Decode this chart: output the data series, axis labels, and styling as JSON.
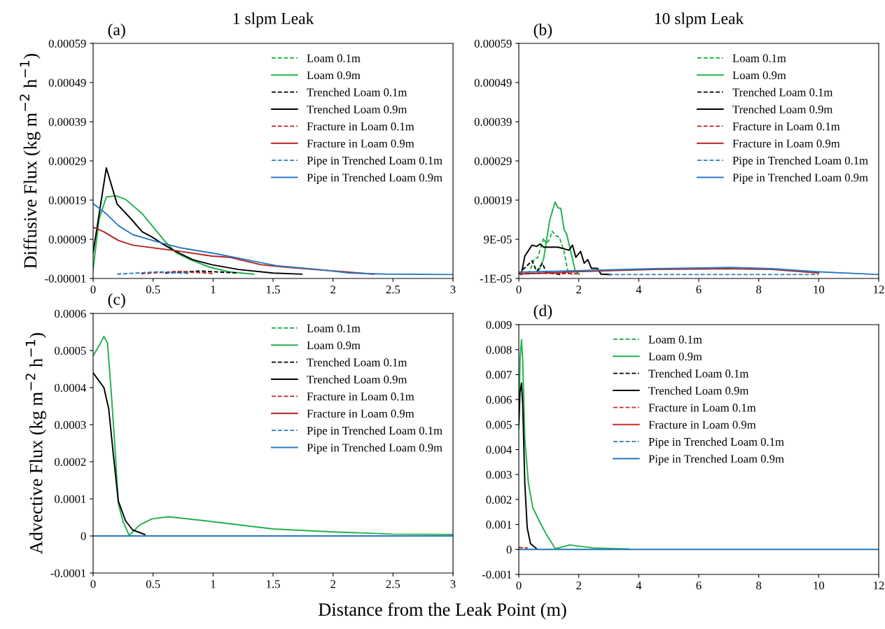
{
  "chart_data": [
    {
      "type": "line",
      "title": "1 slpm Leak",
      "subtitle": "(a)",
      "ylabel": "Diffusive Flux (kg m$^{−2}$ h$^{−1}$)",
      "xlim": [
        0,
        3
      ],
      "xticks": [
        0,
        0.5,
        1,
        1.5,
        2,
        2.5,
        3
      ],
      "ylim": [
        -1e-05,
        0.00059
      ],
      "yticks": [
        {
          "value": -1e-05,
          "label": "-0.00001"
        },
        {
          "value": 9e-05,
          "label": "0.00009"
        },
        {
          "value": 0.00019,
          "label": "0.00019"
        },
        {
          "value": 0.00029,
          "label": "0.00029"
        },
        {
          "value": 0.00039,
          "label": "0.00039"
        },
        {
          "value": 0.00049,
          "label": "0.00049"
        },
        {
          "value": 0.00059,
          "label": "0.00059"
        }
      ],
      "legend": "top right",
      "grid": false,
      "series": [
        {
          "name": "Loam 0.1m",
          "color": "#22b14c",
          "line_style": "dashed"
        },
        {
          "name": "Loam 0.9m",
          "color": "#22b14c",
          "line_style": "solid",
          "x": [
            0,
            0.05,
            0.11,
            0.19,
            0.27,
            0.41,
            0.51,
            0.61,
            0.69,
            0.81,
            0.97,
            1.13,
            1.34
          ],
          "values": [
            1.3e-05,
            0.000142,
            0.000198,
            0.000201,
            0.000192,
            0.000155,
            0.000118,
            8.1e-05,
            5.6e-05,
            3.8e-05,
            1.9e-05,
            7e-06,
            1e-06
          ]
        },
        {
          "name": "Trenched Loam 0.1m",
          "color": "#000000",
          "line_style": "dashed",
          "x": [
            0.6,
            0.9,
            1.2
          ],
          "values": [
            4e-06,
            9e-06,
            4e-06
          ]
        },
        {
          "name": "Trenched Loam 0.9m",
          "color": "#000000",
          "line_style": "solid",
          "x": [
            0,
            0.11,
            0.2,
            0.31,
            0.41,
            0.49,
            0.57,
            0.67,
            0.83,
            0.99,
            1.21,
            1.5,
            1.74
          ],
          "values": [
            5.6e-05,
            0.000272,
            0.00018,
            0.000144,
            0.000109,
            9.6e-05,
            8e-05,
            6.2e-05,
            3.8e-05,
            2.5e-05,
            1.3e-05,
            4e-06,
            1e-06
          ]
        },
        {
          "name": "Fracture in Loam 0.1m",
          "color": "#b22222",
          "line_style": "dashed",
          "x": [
            0.4,
            0.7,
            1.0
          ],
          "values": [
            2e-06,
            8e-06,
            3e-06
          ]
        },
        {
          "name": "Fracture in Loam 0.9m",
          "color": "#b22222",
          "line_style": "solid",
          "x": [
            0,
            0.09,
            0.21,
            0.33,
            0.53,
            0.73,
            0.99,
            1.14,
            1.4,
            1.6,
            1.84,
            2.1,
            2.34
          ],
          "values": [
            0.000121,
            0.000109,
            8.7e-05,
            7.5e-05,
            6.7e-05,
            5.9e-05,
            4.7e-05,
            4.4e-05,
            2.5e-05,
            1.9e-05,
            1.3e-05,
            7e-06,
            1e-06
          ]
        },
        {
          "name": "Pipe in Trenched Loam 0.1m",
          "color": "#2a7abf",
          "line_style": "dashed",
          "x": [
            0.2,
            0.55,
            0.8
          ],
          "values": [
            1e-06,
            7e-06,
            3e-06
          ]
        },
        {
          "name": "Pipe in Trenched Loam 0.9m",
          "color": "#2a7abf",
          "line_style": "solid",
          "x": [
            0,
            0.11,
            0.21,
            0.33,
            0.53,
            0.73,
            1.03,
            1.34,
            1.54,
            1.88,
            2.14,
            2.44,
            3
          ],
          "values": [
            0.000181,
            0.000155,
            0.000125,
            0.000102,
            8.4e-05,
            6.8e-05,
            5.3e-05,
            3.4e-05,
            2.2e-05,
            1.3e-05,
            4e-06,
            1e-06,
            0
          ]
        }
      ]
    },
    {
      "type": "line",
      "title": "10 slpm Leak",
      "subtitle": "(b)",
      "xlim": [
        0,
        12
      ],
      "xticks": [
        0,
        2,
        4,
        6,
        8,
        10,
        12
      ],
      "ylim": [
        -1e-05,
        0.00059
      ],
      "yticks": [
        {
          "value": -1e-05,
          "label": "-1E-05"
        },
        {
          "value": 9e-05,
          "label": "9E-05"
        },
        {
          "value": 0.00019,
          "label": "0.00019"
        },
        {
          "value": 0.00029,
          "label": "0.00029"
        },
        {
          "value": 0.00039,
          "label": "0.00039"
        },
        {
          "value": 0.00049,
          "label": "0.00049"
        },
        {
          "value": 0.00059,
          "label": "0.00059"
        }
      ],
      "legend": "top right",
      "grid": false,
      "series": [
        {
          "name": "Loam 0.1m",
          "color": "#22b14c",
          "line_style": "dashed",
          "x": [
            0.32,
            0.52,
            0.63,
            0.83,
            0.91,
            1.03,
            1.11,
            1.23,
            1.35,
            1.51,
            1.63,
            1.79
          ],
          "values": [
            0,
            4.1e-05,
            4.3e-05,
            9.3e-05,
            7.8e-05,
            9e-05,
            0.000111,
            9.9e-05,
            9.6e-05,
            5.9e-05,
            1e-05,
            0
          ]
        },
        {
          "name": "Loam 0.9m",
          "color": "#22b14c",
          "line_style": "solid",
          "x": [
            0.67,
            0.83,
            1.03,
            1.21,
            1.31,
            1.4,
            1.51,
            1.6,
            1.75,
            1.88,
            2.02
          ],
          "values": [
            1e-05,
            4.1e-05,
            0.000139,
            0.000185,
            0.00017,
            0.000169,
            0.000115,
            0.000102,
            5.3e-05,
            1e-05,
            0
          ]
        },
        {
          "name": "Trenched Loam 0.1m",
          "color": "#000000",
          "line_style": "dashed",
          "x": [
            0.12,
            0.28,
            0.44,
            0.6,
            0.79,
            0.91,
            1.4
          ],
          "values": [
            1.2e-05,
            2.3e-05,
            3.5e-05,
            8e-06,
            2.9e-05,
            5e-06,
            0
          ]
        },
        {
          "name": "Trenched Loam 0.9m",
          "color": "#000000",
          "line_style": "solid",
          "x": [
            0.08,
            0.2,
            0.44,
            0.6,
            0.71,
            0.83,
            1.31,
            1.67,
            1.79,
            1.9,
            2.06,
            2.18,
            2.3,
            2.42,
            2.62,
            2.74,
            3.06
          ],
          "values": [
            0,
            4.7e-05,
            7.5e-05,
            7.2e-05,
            7.8e-05,
            7e-05,
            7e-05,
            6.2e-05,
            7.5e-05,
            4.4e-05,
            5.9e-05,
            2.9e-05,
            3.8e-05,
            1.6e-05,
            1.6e-05,
            1e-06,
            0
          ]
        },
        {
          "name": "Fracture in Loam 0.1m",
          "color": "#b22222",
          "line_style": "dashed",
          "x": [
            0,
            1,
            2
          ],
          "values": [
            4e-06,
            3e-06,
            2e-06
          ]
        },
        {
          "name": "Fracture in Loam 0.9m",
          "color": "#b22222",
          "line_style": "solid",
          "x": [
            0,
            2.1,
            4.5,
            6.9,
            8.45,
            10
          ],
          "values": [
            1e-06,
            8e-06,
            1.3e-05,
            1.5e-05,
            1.3e-05,
            4e-06
          ]
        },
        {
          "name": "Pipe in Trenched Loam 0.1m",
          "color": "#2a7abf",
          "line_style": "dashed",
          "x": [
            3,
            4,
            6,
            8,
            10
          ],
          "values": [
            0,
            0,
            0,
            0,
            0
          ]
        },
        {
          "name": "Pipe in Trenched Loam 0.9m",
          "color": "#2a7abf",
          "line_style": "solid",
          "x": [
            0,
            2.1,
            4.5,
            7.1,
            8.45,
            10,
            12
          ],
          "values": [
            6e-06,
            1e-05,
            1.5e-05,
            1.8e-05,
            1.5e-05,
            7e-06,
            0
          ]
        }
      ]
    },
    {
      "type": "line",
      "title": "(c)",
      "ylabel": "Advective Flux (kg m$^{−2}$ h$^{−1}$)",
      "xlabel": "Distance from the Leak Point (m)",
      "xlim": [
        0,
        3
      ],
      "xticks": [
        0,
        0.5,
        1,
        1.5,
        2,
        2.5,
        3
      ],
      "ylim": [
        -0.0001,
        0.0006
      ],
      "yticks": [
        -0.0001,
        0,
        0.0001,
        0.0002,
        0.0003,
        0.0004,
        0.0005,
        0.0006
      ],
      "legend": "top right",
      "grid": false,
      "series": [
        {
          "name": "Loam 0.1m",
          "color": "#22b14c",
          "line_style": "dashed"
        },
        {
          "name": "Loam 0.9m",
          "color": "#22b14c",
          "line_style": "solid",
          "x": [
            0,
            0.05,
            0.09,
            0.12,
            0.15,
            0.18,
            0.21,
            0.25,
            0.3,
            0.39,
            0.49,
            0.63,
            0.93,
            1.5,
            2,
            2.5,
            3
          ],
          "values": [
            0.000486,
            0.000513,
            0.000538,
            0.00052,
            0.000392,
            0.00025,
            8.7e-05,
            3.8e-05,
            2e-06,
            3e-05,
            4.6e-05,
            5.2e-05,
            4.1e-05,
            1.9e-05,
            1.1e-05,
            5e-06,
            4e-06
          ]
        },
        {
          "name": "Trenched Loam 0.1m",
          "color": "#000000",
          "line_style": "dashed"
        },
        {
          "name": "Trenched Loam 0.9m",
          "color": "#000000",
          "line_style": "solid",
          "x": [
            0,
            0.09,
            0.13,
            0.17,
            0.21,
            0.27,
            0.33,
            0.43
          ],
          "values": [
            0.00044,
            0.0004,
            0.000343,
            0.000215,
            9.4e-05,
            4.1e-05,
            1.6e-05,
            4e-06
          ]
        },
        {
          "name": "Fracture in Loam 0.1m",
          "color": "#b22222",
          "line_style": "dashed"
        },
        {
          "name": "Fracture in Loam 0.9m",
          "color": "#b22222",
          "line_style": "solid"
        },
        {
          "name": "Pipe in Trenched Loam 0.1m",
          "color": "#2a7abf",
          "line_style": "dashed"
        },
        {
          "name": "Pipe in Trenched Loam 0.9m",
          "color": "#2a7abf",
          "line_style": "solid",
          "x": [
            0,
            3
          ],
          "values": [
            0,
            0
          ]
        }
      ]
    },
    {
      "type": "line",
      "title": "(d)",
      "xlim": [
        0,
        12
      ],
      "xticks": [
        0,
        2,
        4,
        6,
        8,
        10,
        12
      ],
      "ylim": [
        -0.001,
        0.009
      ],
      "yticks": [
        -0.001,
        0,
        0.001,
        0.002,
        0.003,
        0.004,
        0.005,
        0.006,
        0.007,
        0.008,
        0.009
      ],
      "legend": "top",
      "grid": false,
      "series": [
        {
          "name": "Loam 0.1m",
          "color": "#22b14c",
          "line_style": "dashed"
        },
        {
          "name": "Loam 0.9m",
          "color": "#22b14c",
          "line_style": "solid",
          "x": [
            0,
            0.04,
            0.09,
            0.13,
            0.2,
            0.32,
            0.47,
            0.67,
            0.91,
            1.22,
            1.7,
            2.49,
            3.67
          ],
          "values": [
            0.00483,
            0.0076,
            0.0084,
            0.0076,
            0.00444,
            0.00265,
            0.00166,
            0.00117,
            0.00062,
            3e-05,
            0.00018,
            6e-05,
            2e-05
          ]
        },
        {
          "name": "Trenched Loam 0.1m",
          "color": "#000000",
          "line_style": "dashed"
        },
        {
          "name": "Trenched Loam 0.9m",
          "color": "#000000",
          "line_style": "solid",
          "x": [
            0,
            0.04,
            0.09,
            0.13,
            0.2,
            0.28,
            0.39,
            0.59
          ],
          "values": [
            0.00503,
            0.0063,
            0.00666,
            0.0058,
            0.00265,
            0.00087,
            0.00023,
            3e-05
          ]
        },
        {
          "name": "Fracture in Loam 0.1m",
          "color": "#d62728",
          "line_style": "dashed",
          "x": [
            0,
            0.3
          ],
          "values": [
            8e-05,
            6e-05
          ]
        },
        {
          "name": "Fracture in Loam 0.9m",
          "color": "#d62728",
          "line_style": "solid"
        },
        {
          "name": "Pipe in Trenched Loam 0.1m",
          "color": "#2a7abf",
          "line_style": "dashed"
        },
        {
          "name": "Pipe in Trenched Loam 0.9m",
          "color": "#1f77c4",
          "line_style": "solid",
          "x": [
            0,
            12
          ],
          "values": [
            0,
            0
          ]
        }
      ]
    }
  ]
}
